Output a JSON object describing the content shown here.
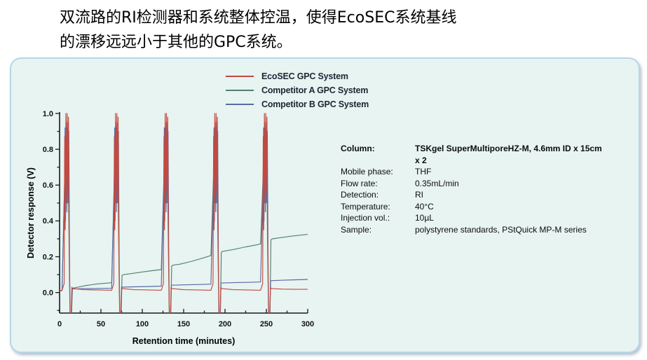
{
  "intro": {
    "line1": "双流路的RI检测器和系统整体控温，使得EcoSEC系统基线",
    "line2": "的漂移远远小于其他的GPC系统。"
  },
  "panel": {
    "background": "#e7f4f1",
    "border_color": "#b7d7e6"
  },
  "chart_data": {
    "type": "line",
    "title": "",
    "xlabel": "Retention time (minutes)",
    "ylabel": "Detector response (V)",
    "xlim": [
      0,
      300
    ],
    "ylim": [
      -0.115,
      1.0
    ],
    "grid": false,
    "legend_position": "top-center",
    "x_major_ticks": {
      "values": [
        0,
        50,
        100,
        150,
        200,
        250,
        300
      ],
      "labels": [
        "0",
        "50",
        "100",
        "150",
        "200",
        "250",
        "300"
      ]
    },
    "x_minor_ticks": [
      25,
      75,
      125,
      175,
      225,
      275
    ],
    "y_major_ticks": {
      "values": [
        0,
        0.2,
        0.4,
        0.6,
        0.8,
        1.0
      ],
      "labels": [
        "0.0",
        "0.2",
        "0.4",
        "0.6",
        "0.8",
        "1.0"
      ]
    },
    "y_minor_ticks": [
      -0.1,
      0.1,
      0.3,
      0.5,
      0.7,
      0.9
    ],
    "series": [
      {
        "name": "EcoSEC GPC System",
        "color": "#c4493f",
        "points": [
          [
            0,
            0.012
          ],
          [
            3,
            0.013
          ],
          [
            5.5,
            0.05
          ],
          [
            6.2,
            0.87
          ],
          [
            6.8,
            0.35
          ],
          [
            7.6,
            1.0
          ],
          [
            8.4,
            0.5
          ],
          [
            9.2,
            1.0
          ],
          [
            10,
            0.55
          ],
          [
            10.8,
            0.98
          ],
          [
            11.6,
            0.3
          ],
          [
            12.2,
            0.05
          ],
          [
            12.8,
            -0.13
          ],
          [
            14,
            -0.13
          ],
          [
            14.8,
            0.03
          ],
          [
            16,
            0.022
          ],
          [
            30,
            0.016
          ],
          [
            50,
            0.014
          ],
          [
            63,
            0.013
          ],
          [
            65.5,
            0.05
          ],
          [
            66.2,
            0.87
          ],
          [
            66.8,
            0.35
          ],
          [
            67.6,
            1.0
          ],
          [
            68.4,
            0.5
          ],
          [
            69.2,
            1.0
          ],
          [
            70,
            0.55
          ],
          [
            70.8,
            0.98
          ],
          [
            71.6,
            0.3
          ],
          [
            72.2,
            0.05
          ],
          [
            72.8,
            -0.13
          ],
          [
            74,
            -0.13
          ],
          [
            74.8,
            0.03
          ],
          [
            76,
            0.022
          ],
          [
            90,
            0.016
          ],
          [
            110,
            0.014
          ],
          [
            123,
            0.013
          ],
          [
            125.5,
            0.05
          ],
          [
            126.2,
            0.87
          ],
          [
            126.8,
            0.35
          ],
          [
            127.6,
            1.0
          ],
          [
            128.4,
            0.5
          ],
          [
            129.2,
            1.0
          ],
          [
            130,
            0.55
          ],
          [
            130.8,
            0.98
          ],
          [
            131.6,
            0.3
          ],
          [
            132.2,
            0.05
          ],
          [
            132.8,
            -0.13
          ],
          [
            134,
            -0.13
          ],
          [
            134.8,
            0.03
          ],
          [
            136,
            0.022
          ],
          [
            150,
            0.016
          ],
          [
            170,
            0.014
          ],
          [
            183,
            0.013
          ],
          [
            185.5,
            0.05
          ],
          [
            186.2,
            0.87
          ],
          [
            186.8,
            0.35
          ],
          [
            187.6,
            1.0
          ],
          [
            188.4,
            0.5
          ],
          [
            189.2,
            1.0
          ],
          [
            190,
            0.55
          ],
          [
            190.8,
            0.98
          ],
          [
            191.6,
            0.3
          ],
          [
            192.2,
            0.05
          ],
          [
            192.8,
            -0.13
          ],
          [
            194,
            -0.13
          ],
          [
            194.8,
            0.03
          ],
          [
            196,
            0.022
          ],
          [
            210,
            0.016
          ],
          [
            230,
            0.014
          ],
          [
            243,
            0.013
          ],
          [
            245.5,
            0.05
          ],
          [
            246.2,
            0.87
          ],
          [
            246.8,
            0.35
          ],
          [
            247.6,
            1.0
          ],
          [
            248.4,
            0.5
          ],
          [
            249.2,
            1.0
          ],
          [
            250,
            0.55
          ],
          [
            250.8,
            0.98
          ],
          [
            251.6,
            0.3
          ],
          [
            252.2,
            0.05
          ],
          [
            252.8,
            -0.13
          ],
          [
            254,
            -0.13
          ],
          [
            254.8,
            0.03
          ],
          [
            256,
            0.022
          ],
          [
            270,
            0.019
          ],
          [
            285,
            0.018
          ],
          [
            300,
            0.018
          ]
        ]
      },
      {
        "name": "Competitor A GPC System",
        "color": "#54806e",
        "points": [
          [
            0,
            0.01
          ],
          [
            3,
            0.012
          ],
          [
            6.4,
            0.7
          ],
          [
            7.0,
            0.88
          ],
          [
            7.8,
            0.5
          ],
          [
            8.6,
            0.92
          ],
          [
            9.4,
            0.5
          ],
          [
            10.2,
            0.9
          ],
          [
            11,
            0.45
          ],
          [
            11.8,
            0.15
          ],
          [
            12.6,
            -0.13
          ],
          [
            14.4,
            -0.13
          ],
          [
            15.5,
            0.022
          ],
          [
            17,
            0.026
          ],
          [
            20,
            0.028
          ],
          [
            30,
            0.038
          ],
          [
            45,
            0.048
          ],
          [
            60,
            0.054
          ],
          [
            63,
            0.055
          ],
          [
            66.4,
            0.7
          ],
          [
            67.0,
            0.88
          ],
          [
            67.8,
            0.5
          ],
          [
            68.6,
            0.92
          ],
          [
            69.4,
            0.5
          ],
          [
            70.2,
            0.9
          ],
          [
            71,
            0.45
          ],
          [
            71.8,
            0.15
          ],
          [
            72.6,
            -0.13
          ],
          [
            74.4,
            -0.13
          ],
          [
            75.5,
            0.095
          ],
          [
            77,
            0.1
          ],
          [
            85,
            0.105
          ],
          [
            100,
            0.115
          ],
          [
            115,
            0.124
          ],
          [
            123,
            0.128
          ],
          [
            126.4,
            0.7
          ],
          [
            127.0,
            0.88
          ],
          [
            127.8,
            0.5
          ],
          [
            128.6,
            0.92
          ],
          [
            129.4,
            0.5
          ],
          [
            130.2,
            0.9
          ],
          [
            131,
            0.45
          ],
          [
            131.8,
            0.15
          ],
          [
            132.6,
            -0.13
          ],
          [
            134.4,
            -0.13
          ],
          [
            135.5,
            0.148
          ],
          [
            137,
            0.153
          ],
          [
            145,
            0.158
          ],
          [
            160,
            0.175
          ],
          [
            175,
            0.195
          ],
          [
            183,
            0.207
          ],
          [
            186.4,
            0.7
          ],
          [
            187.0,
            0.88
          ],
          [
            187.8,
            0.5
          ],
          [
            188.6,
            0.92
          ],
          [
            189.4,
            0.5
          ],
          [
            190.2,
            0.9
          ],
          [
            191,
            0.45
          ],
          [
            191.8,
            0.15
          ],
          [
            192.6,
            -0.13
          ],
          [
            194.4,
            -0.13
          ],
          [
            195.5,
            0.225
          ],
          [
            197,
            0.23
          ],
          [
            210,
            0.24
          ],
          [
            225,
            0.255
          ],
          [
            240,
            0.268
          ],
          [
            243,
            0.272
          ],
          [
            246.4,
            0.7
          ],
          [
            247.0,
            0.88
          ],
          [
            247.8,
            0.5
          ],
          [
            248.6,
            0.92
          ],
          [
            249.4,
            0.5
          ],
          [
            250.2,
            0.9
          ],
          [
            251,
            0.45
          ],
          [
            251.8,
            0.15
          ],
          [
            252.6,
            -0.13
          ],
          [
            254.4,
            -0.13
          ],
          [
            255.5,
            0.295
          ],
          [
            257,
            0.3
          ],
          [
            265,
            0.305
          ],
          [
            280,
            0.315
          ],
          [
            300,
            0.325
          ]
        ]
      },
      {
        "name": "Competitor B GPC System",
        "color": "#5b69a6",
        "points": [
          [
            0,
            0.01
          ],
          [
            3,
            0.01
          ],
          [
            6.0,
            0.6
          ],
          [
            6.6,
            0.92
          ],
          [
            7.2,
            0.4
          ],
          [
            8.0,
            0.95
          ],
          [
            8.8,
            0.45
          ],
          [
            9.6,
            0.95
          ],
          [
            10.4,
            0.5
          ],
          [
            11.2,
            0.9
          ],
          [
            12.0,
            0.2
          ],
          [
            12.7,
            -0.13
          ],
          [
            14.2,
            -0.13
          ],
          [
            15.2,
            0.02
          ],
          [
            30,
            0.022
          ],
          [
            50,
            0.023
          ],
          [
            63,
            0.024
          ],
          [
            66.0,
            0.6
          ],
          [
            66.6,
            0.92
          ],
          [
            67.2,
            0.4
          ],
          [
            68.0,
            0.95
          ],
          [
            68.8,
            0.45
          ],
          [
            69.6,
            0.95
          ],
          [
            70.4,
            0.5
          ],
          [
            71.2,
            0.9
          ],
          [
            72.0,
            0.2
          ],
          [
            72.7,
            -0.13
          ],
          [
            74.2,
            -0.13
          ],
          [
            75.2,
            0.03
          ],
          [
            90,
            0.032
          ],
          [
            110,
            0.034
          ],
          [
            123,
            0.036
          ],
          [
            126.0,
            0.6
          ],
          [
            126.6,
            0.92
          ],
          [
            127.2,
            0.4
          ],
          [
            128.0,
            0.95
          ],
          [
            128.8,
            0.45
          ],
          [
            129.6,
            0.95
          ],
          [
            130.4,
            0.5
          ],
          [
            131.2,
            0.9
          ],
          [
            132.0,
            0.2
          ],
          [
            132.7,
            -0.13
          ],
          [
            134.2,
            -0.13
          ],
          [
            135.2,
            0.041
          ],
          [
            150,
            0.043
          ],
          [
            170,
            0.045
          ],
          [
            183,
            0.047
          ],
          [
            186.0,
            0.6
          ],
          [
            186.6,
            0.92
          ],
          [
            187.2,
            0.4
          ],
          [
            188.0,
            0.95
          ],
          [
            188.8,
            0.45
          ],
          [
            189.6,
            0.95
          ],
          [
            190.4,
            0.5
          ],
          [
            191.2,
            0.9
          ],
          [
            192.0,
            0.2
          ],
          [
            192.7,
            -0.13
          ],
          [
            194.2,
            -0.13
          ],
          [
            195.2,
            0.053
          ],
          [
            210,
            0.055
          ],
          [
            230,
            0.057
          ],
          [
            243,
            0.059
          ],
          [
            246.0,
            0.6
          ],
          [
            246.6,
            0.92
          ],
          [
            247.2,
            0.4
          ],
          [
            248.0,
            0.95
          ],
          [
            248.8,
            0.45
          ],
          [
            249.6,
            0.95
          ],
          [
            250.4,
            0.5
          ],
          [
            251.2,
            0.9
          ],
          [
            252.0,
            0.2
          ],
          [
            252.7,
            -0.13
          ],
          [
            254.2,
            -0.13
          ],
          [
            255.2,
            0.066
          ],
          [
            270,
            0.069
          ],
          [
            285,
            0.071
          ],
          [
            300,
            0.073
          ]
        ]
      }
    ]
  },
  "conditions": {
    "rows": [
      {
        "label": "Column:",
        "value": "TSKgel SuperMultiporeHZ-M, 4.6mm ID x 15cm\nx 2",
        "bold": true
      },
      {
        "label": "Mobile phase:",
        "value": "THF",
        "bold": false
      },
      {
        "label": "Flow rate:",
        "value": "0.35mL/min",
        "bold": false
      },
      {
        "label": "Detection:",
        "value": "RI",
        "bold": false
      },
      {
        "label": "Temperature:",
        "value": "40°C",
        "bold": false
      },
      {
        "label": "Injection vol.:",
        "value": "10µL",
        "bold": false
      },
      {
        "label": "Sample:",
        "value": "polystyrene standards, PStQuick MP-M series",
        "bold": false
      }
    ]
  }
}
